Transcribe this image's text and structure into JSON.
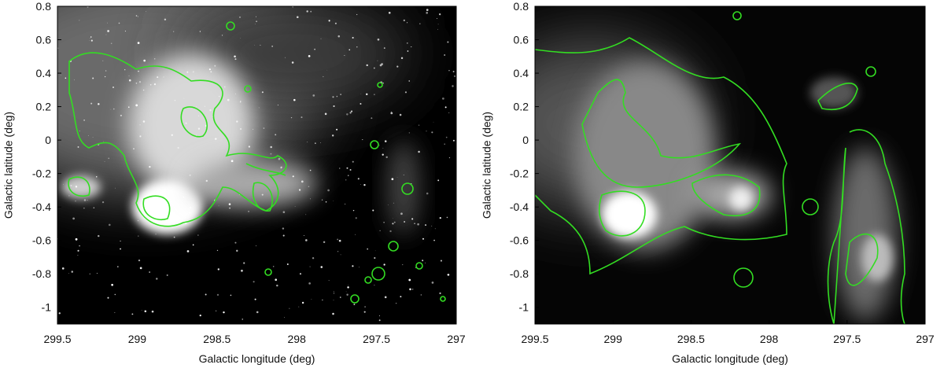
{
  "chart_data": [
    {
      "type": "image",
      "x_label": "Galactic longitude (deg)",
      "y_label": "Galactic latitude (deg)",
      "xlim": [
        299.5,
        297
      ],
      "ylim": [
        -1.1,
        0.8
      ],
      "xticks": [
        299.5,
        299,
        298.5,
        298,
        297.5,
        297
      ],
      "yticks": [
        -1,
        -0.8,
        -0.6,
        -0.4,
        -0.2,
        0,
        0.2,
        0.4,
        0.6,
        0.8
      ]
    },
    {
      "type": "image",
      "x_label": "Galactic longitude (deg)",
      "y_label": "Galactic latitude (deg)",
      "xlim": [
        299.5,
        297
      ],
      "ylim": [
        -1.1,
        0.8
      ],
      "xticks": [
        299.5,
        299,
        298.5,
        298,
        297.5,
        297
      ],
      "yticks": [
        -1,
        -0.8,
        -0.6,
        -0.4,
        -0.2,
        0,
        0.2,
        0.4,
        0.6,
        0.8
      ]
    }
  ]
}
